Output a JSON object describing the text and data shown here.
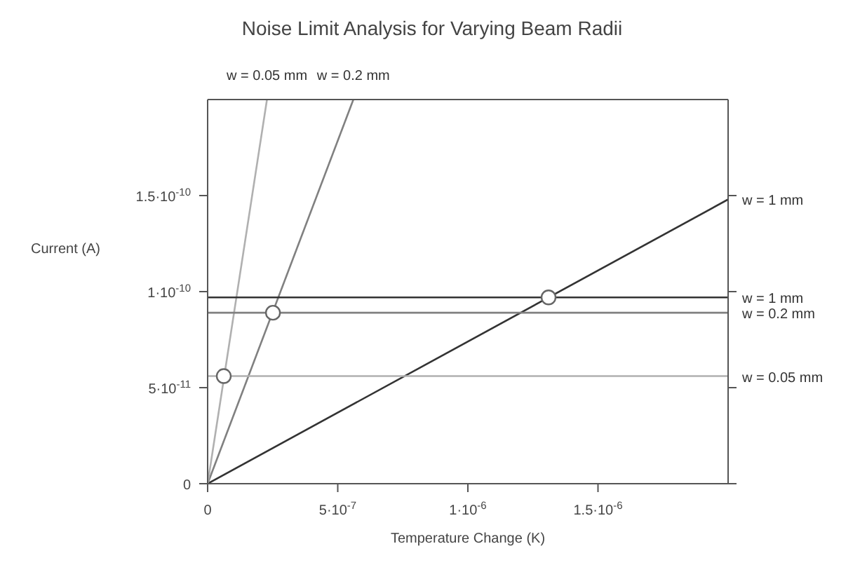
{
  "chart_data": {
    "type": "line",
    "title": "Noise Limit Analysis for Varying Beam Radii",
    "xlabel": "Temperature Change (K)",
    "ylabel": "Current (A)",
    "xlim": [
      0,
      2e-06
    ],
    "ylim": [
      0,
      2e-10
    ],
    "xticks": [
      0,
      {
        "value": 5e-07,
        "label": "5·10$^{-7}$"
      },
      {
        "value": 1e-06,
        "label": "1·10$^{-6}$"
      },
      {
        "value": 1.5e-06,
        "label": "1.5·10$^{-6}$"
      }
    ],
    "yticks": [
      0,
      {
        "value": 5e-11,
        "label": "5·10$^{-11}$"
      },
      {
        "value": 1e-10,
        "label": "1·10$^{-10}$"
      },
      {
        "value": 1.5e-10,
        "label": "1.5·10$^{-10}$"
      }
    ],
    "series": [
      {
        "name": "w = 1 mm",
        "color": "#333333",
        "x": [
          0,
          2e-06
        ],
        "values": [
          0,
          1.48e-10
        ]
      },
      {
        "name": "w = 0.2 mm",
        "color": "#808080",
        "x": [
          0,
          5.6e-07
        ],
        "values": [
          0,
          2e-10
        ]
      },
      {
        "name": "w = 0.05 mm",
        "color": "#b0b0b0",
        "x": [
          0,
          2.28e-07
        ],
        "values": [
          0,
          2e-10
        ]
      },
      {
        "name": "w = 1 mm",
        "color": "#333333",
        "x": [
          0,
          2e-06
        ],
        "values": [
          9.7e-11,
          9.7e-11
        ]
      },
      {
        "name": "w = 0.2 mm",
        "color": "#808080",
        "x": [
          0,
          2e-06
        ],
        "values": [
          8.9e-11,
          8.9e-11
        ]
      },
      {
        "name": "w = 0.05 mm",
        "color": "#b0b0b0",
        "x": [
          0,
          2e-06
        ],
        "values": [
          5.6e-11,
          5.6e-11
        ]
      },
      {
        "type": "scatter",
        "marker": "circle",
        "color": "#666666",
        "x": [
          1.31e-06,
          2.51e-07,
          6.2e-08
        ],
        "values": [
          9.7e-11,
          8.9e-11,
          5.6e-11
        ]
      }
    ]
  }
}
